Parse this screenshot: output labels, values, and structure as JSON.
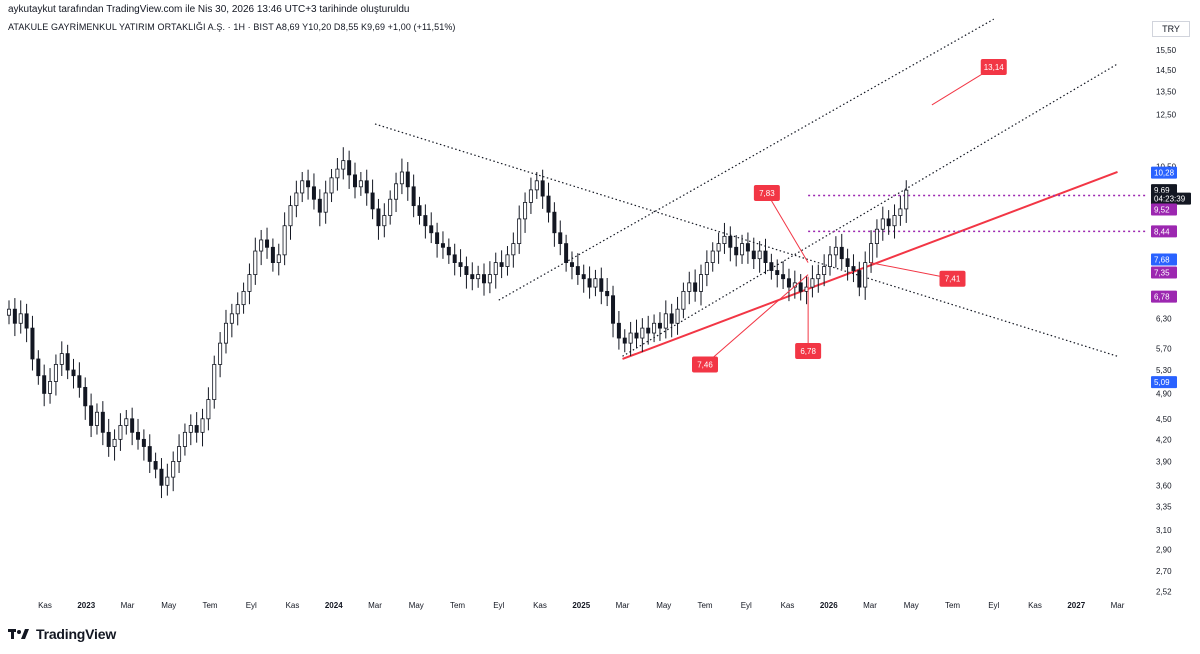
{
  "header": {
    "caption": "aykutaykut tarafından TradingView.com ile Nis 30, 2026 13:46 UTC+3 tarihinde oluşturuldu",
    "symbol_line": "ATAKULE GAYRİMENKUL YATIRIM ORTAKLIĞI A.Ş. · 1H · BIST   A8,69  Y10,20  D8,55  K9,69  +1,00 (+11,51%)",
    "currency": "TRY"
  },
  "footer": {
    "brand": "TradingView"
  },
  "chart_data": {
    "type": "candlestick",
    "title": "ATAKULE GAYRİMENKUL YATIRIM ORTAKLIĞI A.Ş. · 1H · BIST",
    "y_scale": "log",
    "ylim": [
      2.45,
      17.5
    ],
    "y_ticks": [
      "15,50",
      "14,50",
      "13,50",
      "12,50",
      "10,50",
      "6,30",
      "5,70",
      "5,30",
      "4,90",
      "4,50",
      "4,20",
      "3,90",
      "3,60",
      "3,35",
      "3,10",
      "2,90",
      "2,70",
      "2,52"
    ],
    "y_tick_values": [
      15.5,
      14.5,
      13.5,
      12.5,
      10.5,
      6.3,
      5.7,
      5.3,
      4.9,
      4.5,
      4.2,
      3.9,
      3.6,
      3.35,
      3.1,
      2.9,
      2.7,
      2.52
    ],
    "x_ticks": [
      {
        "label": "Kas",
        "year": false
      },
      {
        "label": "2023",
        "year": true
      },
      {
        "label": "Mar",
        "year": false
      },
      {
        "label": "May",
        "year": false
      },
      {
        "label": "Tem",
        "year": false
      },
      {
        "label": "Eyl",
        "year": false
      },
      {
        "label": "Kas",
        "year": false
      },
      {
        "label": "2024",
        "year": true
      },
      {
        "label": "Mar",
        "year": false
      },
      {
        "label": "May",
        "year": false
      },
      {
        "label": "Tem",
        "year": false
      },
      {
        "label": "Eyl",
        "year": false
      },
      {
        "label": "Kas",
        "year": false
      },
      {
        "label": "2025",
        "year": true
      },
      {
        "label": "Mar",
        "year": false
      },
      {
        "label": "May",
        "year": false
      },
      {
        "label": "Tem",
        "year": false
      },
      {
        "label": "Eyl",
        "year": false
      },
      {
        "label": "Kas",
        "year": false
      },
      {
        "label": "2026",
        "year": true
      },
      {
        "label": "Mar",
        "year": false
      },
      {
        "label": "May",
        "year": false
      },
      {
        "label": "Tem",
        "year": false
      },
      {
        "label": "Eyl",
        "year": false
      },
      {
        "label": "Kas",
        "year": false
      },
      {
        "label": "2027",
        "year": true
      },
      {
        "label": "Mar",
        "year": false
      }
    ],
    "x_tick_index": [
      0,
      1,
      2,
      3,
      4,
      5,
      6,
      7,
      8,
      9,
      10,
      11,
      12,
      13,
      14,
      15,
      16,
      17,
      18,
      19,
      20,
      21,
      22,
      23,
      24,
      25,
      26
    ],
    "last_candle_month_index": 21,
    "closes": [
      6.5,
      6.2,
      6.4,
      6.1,
      5.5,
      5.2,
      4.9,
      5.1,
      5.4,
      5.6,
      5.3,
      5.2,
      5.0,
      4.7,
      4.4,
      4.6,
      4.3,
      4.1,
      4.2,
      4.4,
      4.5,
      4.3,
      4.2,
      4.1,
      3.9,
      3.8,
      3.6,
      3.7,
      3.9,
      4.1,
      4.3,
      4.4,
      4.3,
      4.5,
      4.8,
      5.4,
      5.8,
      6.2,
      6.4,
      6.6,
      6.9,
      7.3,
      7.9,
      8.2,
      8.0,
      7.6,
      7.8,
      8.6,
      9.2,
      9.6,
      10.0,
      9.8,
      9.4,
      9.0,
      9.6,
      10.1,
      10.4,
      10.7,
      10.2,
      9.8,
      10.0,
      9.6,
      9.1,
      8.6,
      8.9,
      9.4,
      9.9,
      10.3,
      9.8,
      9.2,
      8.9,
      8.6,
      8.4,
      8.1,
      8.0,
      7.8,
      7.6,
      7.5,
      7.3,
      7.2,
      7.3,
      7.1,
      7.3,
      7.6,
      7.5,
      7.8,
      8.1,
      8.8,
      9.3,
      9.7,
      10.0,
      9.5,
      9.0,
      8.4,
      8.1,
      7.6,
      7.5,
      7.3,
      7.2,
      7.0,
      7.2,
      6.9,
      6.8,
      6.2,
      5.9,
      5.8,
      6.0,
      5.9,
      6.1,
      6.0,
      6.2,
      6.1,
      6.4,
      6.2,
      6.5,
      6.9,
      7.1,
      6.9,
      7.3,
      7.6,
      7.9,
      8.1,
      8.3,
      8.0,
      7.8,
      8.1,
      7.9,
      7.7,
      7.9,
      7.6,
      7.4,
      7.3,
      7.2,
      7.0,
      7.1,
      6.9,
      7.0,
      7.2,
      7.3,
      7.5,
      7.8,
      8.0,
      7.7,
      7.5,
      7.4,
      7.0,
      7.6,
      8.1,
      8.5,
      8.8,
      8.6,
      8.9,
      9.1,
      9.69
    ],
    "channel_upper_1": {
      "from": [
        "2024-Eyl",
        6.7
      ],
      "to": [
        "2026-Eyl",
        17.2
      ]
    },
    "channel_upper_2": {
      "from": [
        "2025-Mar",
        5.55
      ],
      "to": [
        "2027-Mar",
        14.8
      ]
    },
    "downtrend_line": {
      "from": [
        "2024-Mar",
        12.1
      ],
      "to": [
        "2027-Mar",
        5.55
      ]
    },
    "uptrend_line": {
      "from": [
        "2025-Mar",
        5.5
      ],
      "to": [
        "2027-Mar",
        10.3
      ]
    },
    "hlines": [
      {
        "value": 9.52,
        "color": "#9c27b0"
      },
      {
        "value": 8.44,
        "color": "#9c27b0"
      }
    ],
    "price_tags": [
      {
        "label": "10,28",
        "value": 10.28,
        "color": "#2962ff"
      },
      {
        "label": "9,69",
        "value": 9.69,
        "color": "#131722"
      },
      {
        "label": "04:23:39",
        "value": 9.42,
        "color": "#131722"
      },
      {
        "label": "9,52",
        "value": 9.08,
        "color": "#9c27b0"
      },
      {
        "label": "8,44",
        "value": 8.44,
        "color": "#9c27b0"
      },
      {
        "label": "7,68",
        "value": 7.68,
        "color": "#2962ff"
      },
      {
        "label": "7,35",
        "value": 7.35,
        "color": "#9c27b0"
      },
      {
        "label": "6,78",
        "value": 6.78,
        "color": "#9c27b0"
      },
      {
        "label": "5,09",
        "value": 5.09,
        "color": "#2962ff"
      }
    ],
    "annotations": [
      {
        "label": "13,14",
        "anchor": [
          "2026-Haz",
          12.9
        ],
        "box": [
          "2026-Eyl",
          14.65
        ]
      },
      {
        "label": "7,83",
        "anchor": [
          "2025-Ara",
          7.6
        ],
        "box": [
          "2025-Eki",
          9.6
        ]
      },
      {
        "label": "7,46",
        "anchor": [
          "2025-Ara",
          7.3
        ],
        "box": [
          "2025-Tem",
          5.4
        ]
      },
      {
        "label": "6,78",
        "anchor": [
          "2025-Ara",
          7.25
        ],
        "box": [
          "2025-Ara",
          5.65
        ]
      },
      {
        "label": "7,41",
        "anchor": [
          "2026-Mar",
          7.6
        ],
        "box": [
          "2026-Tem",
          7.2
        ]
      }
    ],
    "colors": {
      "up": "#131722",
      "down": "#131722",
      "uptrend": "#f23645",
      "annotation": "#f23645",
      "grid": "#ffffff"
    }
  }
}
